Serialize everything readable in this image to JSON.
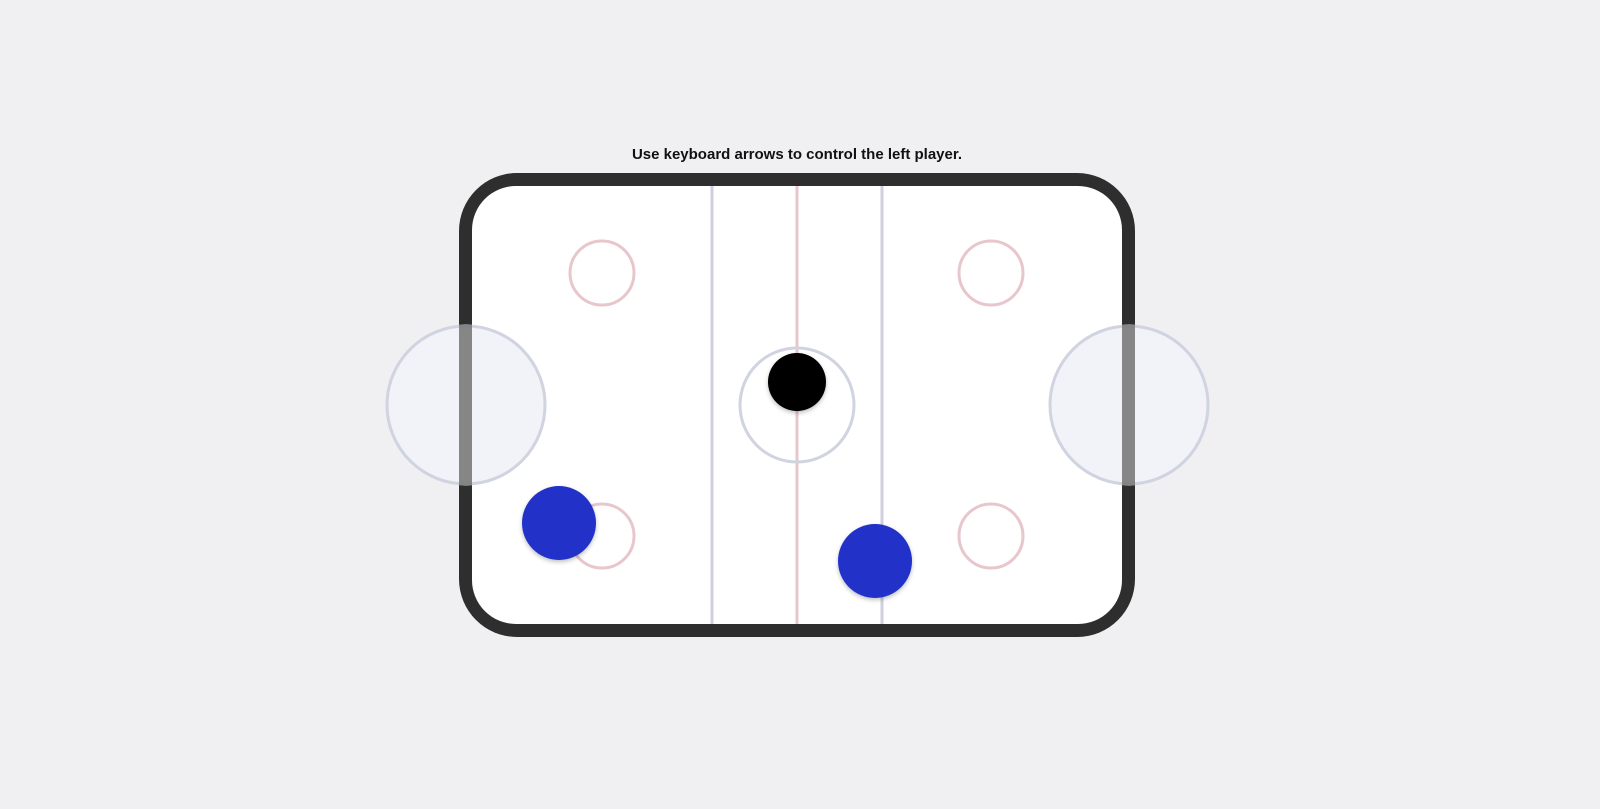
{
  "instruction": "Use keyboard arrows to control the left player.",
  "colors": {
    "background": "#f0f0f2",
    "board": "#2e2e2e",
    "ice": "#ffffff",
    "blue_line": "#cfcfe0",
    "center_line": "#e7c6cc",
    "faceoff_circle": "#e7c6cc",
    "center_circle": "#d0d3e0",
    "crease_fill": "#f2f3f8",
    "goal": "#808080",
    "puck": "#000000",
    "player": "#2231c8"
  },
  "pieces": {
    "puck": {
      "name": "puck"
    },
    "players": [
      {
        "name": "left-player"
      },
      {
        "name": "right-player"
      }
    ]
  }
}
